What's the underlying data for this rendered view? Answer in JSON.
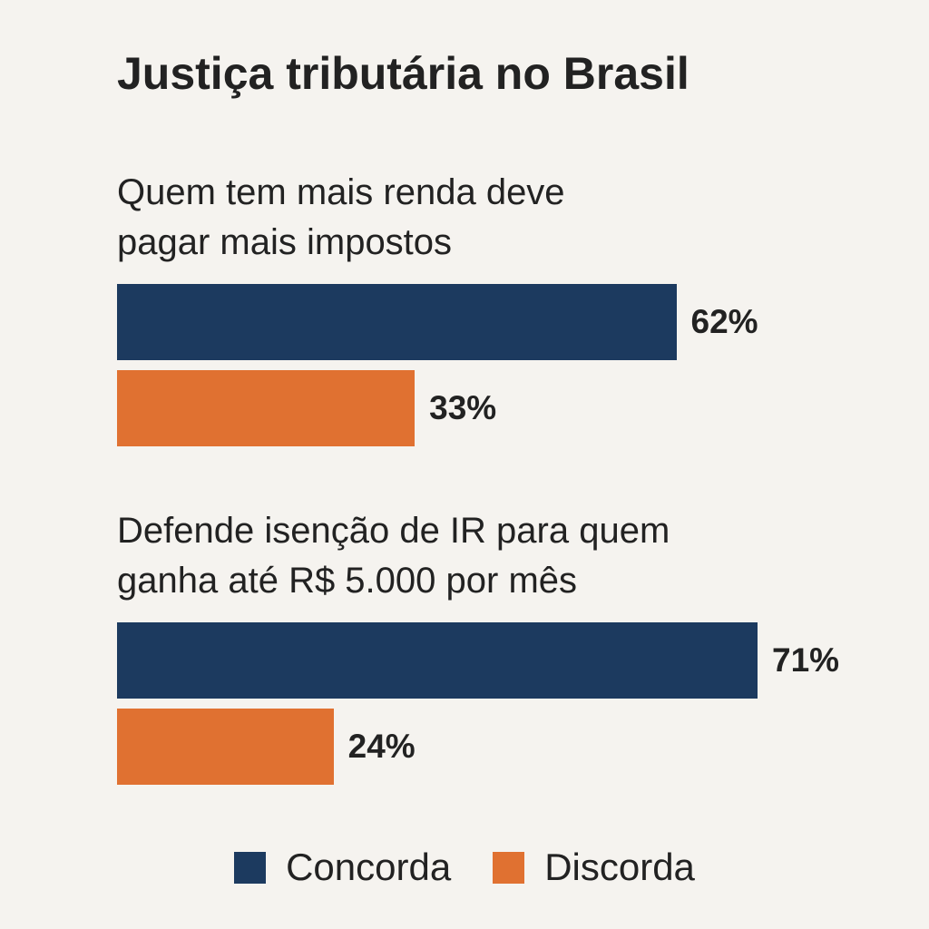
{
  "chart_data": {
    "type": "bar",
    "orientation": "horizontal",
    "title": "Justiça tributária no Brasil",
    "categories": [
      "Quem tem mais renda deve pagar mais impostos",
      "Defende isenção de IR para quem ganha até R$ 5.000 por mês"
    ],
    "series": [
      {
        "name": "Concorda",
        "color": "#1c3a5f",
        "values": [
          62,
          71
        ],
        "value_labels": [
          "62%",
          "71%"
        ]
      },
      {
        "name": "Discorda",
        "color": "#e07131",
        "values": [
          33,
          24
        ],
        "value_labels": [
          "33%",
          "24%"
        ]
      }
    ]
  }
}
